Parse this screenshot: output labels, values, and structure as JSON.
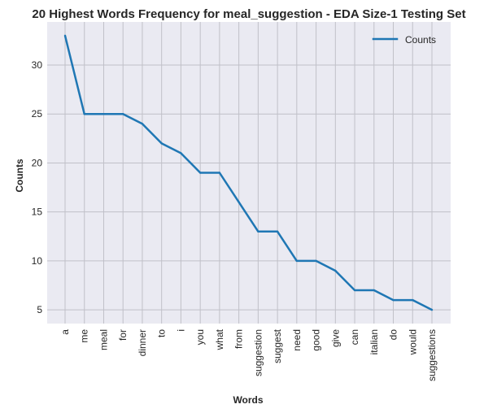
{
  "chart_data": {
    "type": "line",
    "title": "20 Highest Words Frequency for meal_suggestion - EDA Size-1 Testing Set",
    "xlabel": "Words",
    "ylabel": "Counts",
    "categories": [
      "a",
      "me",
      "meal",
      "for",
      "dinner",
      "to",
      "i",
      "you",
      "what",
      "from",
      "suggestion",
      "suggest",
      "need",
      "good",
      "give",
      "can",
      "italian",
      "do",
      "would",
      "suggestions"
    ],
    "series": [
      {
        "name": "Counts",
        "values": [
          33,
          25,
          25,
          25,
          24,
          22,
          21,
          19,
          19,
          16,
          13,
          13,
          10,
          10,
          9,
          7,
          7,
          6,
          6,
          5
        ],
        "color": "#1f77b4"
      }
    ],
    "ylim": [
      3.6,
      34.4
    ],
    "yticks": [
      5,
      10,
      15,
      20,
      25,
      30
    ],
    "grid": true,
    "legend_position": "top-right",
    "plot_background": "#eaeaf2",
    "grid_color": "#c0c0c8"
  }
}
